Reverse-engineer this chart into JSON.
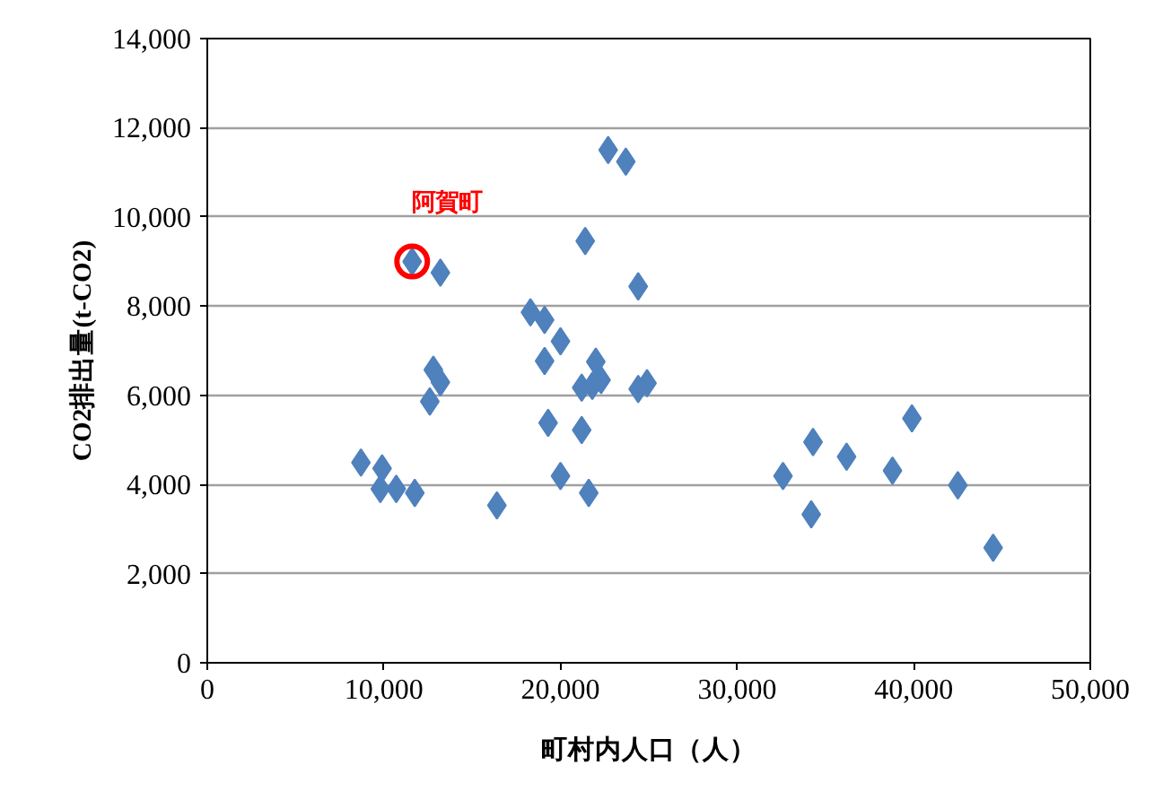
{
  "chart_data": {
    "type": "scatter",
    "xlabel": "町村内人口（人）",
    "ylabel": "CO2排出量(t-CO2)",
    "xlim": [
      0,
      50000
    ],
    "xticks": [
      {
        "value": 0,
        "label": "0"
      },
      {
        "value": 10000,
        "label": "10,000"
      },
      {
        "value": 20000,
        "label": "20,000"
      },
      {
        "value": 30000,
        "label": "30,000"
      },
      {
        "value": 40000,
        "label": "40,000"
      },
      {
        "value": 50000,
        "label": "50,000"
      }
    ],
    "ylim": [
      0,
      14000
    ],
    "yticks": [
      {
        "value": 0,
        "label": "0"
      },
      {
        "value": 2000,
        "label": "2,000"
      },
      {
        "value": 4000,
        "label": "4,000"
      },
      {
        "value": 6000,
        "label": "6,000"
      },
      {
        "value": 8000,
        "label": "8,000"
      },
      {
        "value": 10000,
        "label": "10,000"
      },
      {
        "value": 12000,
        "label": "12,000"
      },
      {
        "value": 14000,
        "label": "14,000"
      }
    ],
    "grid": "y",
    "marker": "diamond",
    "annotations": [
      {
        "text": "阿賀町",
        "x": 11600,
        "y": 9000
      }
    ],
    "series": [
      {
        "color": "#4f81bd",
        "x": [
          11600,
          13200,
          22700,
          23700,
          21400,
          24400,
          18300,
          19100,
          20000,
          19100,
          22000,
          21200,
          21800,
          22300,
          24400,
          24900,
          12800,
          13200,
          12600,
          19300,
          21200,
          20000,
          21600,
          16400,
          8700,
          9900,
          9800,
          10700,
          11750,
          32600,
          34300,
          34200,
          36200,
          38800,
          39900,
          42500,
          44500
        ],
        "values": [
          9000,
          8750,
          11500,
          11240,
          9460,
          8440,
          7860,
          7690,
          7210,
          6770,
          6750,
          6170,
          6210,
          6340,
          6140,
          6270,
          6570,
          6290,
          5860,
          5380,
          5220,
          4190,
          3810,
          3530,
          4490,
          4360,
          3900,
          3900,
          3810,
          4190,
          4950,
          3330,
          4620,
          4310,
          5480,
          3980,
          2580
        ]
      }
    ]
  }
}
